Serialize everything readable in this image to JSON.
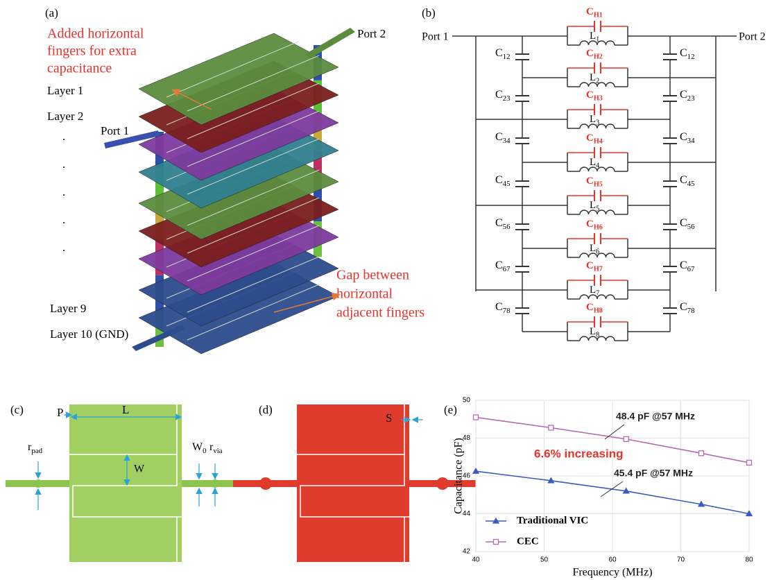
{
  "panel_a": {
    "label": "(a)",
    "annotation_top": [
      "Added horizontal",
      "fingers for extra",
      "capacitance"
    ],
    "port2": "Port 2",
    "port1": "Port 1",
    "layers_top": [
      "Layer 1",
      "Layer 2"
    ],
    "dots": [
      ".",
      ".",
      ".",
      ".",
      "."
    ],
    "layers_bottom": [
      "Layer 9",
      "Layer 10 (GND)"
    ],
    "annotation_bottom": [
      "Gap between",
      "horizontal",
      "adjacent  fingers"
    ]
  },
  "panel_b": {
    "label": "(b)",
    "port1": "Port 1",
    "port2": "Port 2",
    "parallel_caps": [
      {
        "base": "C",
        "sub": "H1"
      },
      {
        "base": "C",
        "sub": "H2"
      },
      {
        "base": "C",
        "sub": "H3"
      },
      {
        "base": "C",
        "sub": "H4"
      },
      {
        "base": "C",
        "sub": "H5"
      },
      {
        "base": "C",
        "sub": "H6"
      },
      {
        "base": "C",
        "sub": "H7"
      },
      {
        "base": "C",
        "sub": "H8"
      }
    ],
    "inductors": [
      {
        "base": "L",
        "sub": "1"
      },
      {
        "base": "L",
        "sub": "2"
      },
      {
        "base": "L",
        "sub": "3"
      },
      {
        "base": "L",
        "sub": "4"
      },
      {
        "base": "L",
        "sub": "5"
      },
      {
        "base": "L",
        "sub": "6"
      },
      {
        "base": "L",
        "sub": "7"
      },
      {
        "base": "L",
        "sub": "8"
      }
    ],
    "coupling_caps": [
      {
        "base": "C",
        "sub": "12"
      },
      {
        "base": "C",
        "sub": "23"
      },
      {
        "base": "C",
        "sub": "34"
      },
      {
        "base": "C",
        "sub": "45"
      },
      {
        "base": "C",
        "sub": "56"
      },
      {
        "base": "C",
        "sub": "67"
      },
      {
        "base": "C",
        "sub": "78"
      }
    ]
  },
  "panel_c": {
    "label": "(c)",
    "p": "P",
    "l": "L",
    "w": "W",
    "r_pad": {
      "base": "r",
      "sub": "pad"
    },
    "w0": {
      "base": "W",
      "sub": "0"
    },
    "r_via": {
      "base": "r",
      "sub": "via"
    }
  },
  "panel_d": {
    "label": "(d)",
    "s": "S"
  },
  "chart_data": {
    "type": "line",
    "label": "(e)",
    "x": [
      40,
      51,
      62,
      73,
      80
    ],
    "series": [
      {
        "name": "Traditional VIC",
        "color": "#3b5bbf",
        "marker": "triangle",
        "values": [
          46.25,
          45.75,
          45.2,
          44.5,
          44.0
        ]
      },
      {
        "name": "CEC",
        "color": "#b36ab3",
        "marker": "square",
        "values": [
          49.1,
          48.55,
          47.95,
          47.2,
          46.7
        ]
      }
    ],
    "xlim": [
      40,
      80
    ],
    "xticks": [
      40,
      50,
      60,
      70,
      80
    ],
    "ylim": [
      42,
      50
    ],
    "yticks": [
      42,
      44,
      46,
      48,
      50
    ],
    "xlabel": "Frequency (MHz)",
    "ylabel": "Capacitance (pF)",
    "grid": true,
    "legend": "lower left",
    "annotations": [
      "48.4 pF @57 MHz",
      "6.6% increasing",
      "45.4 pF @57 MHz"
    ]
  }
}
